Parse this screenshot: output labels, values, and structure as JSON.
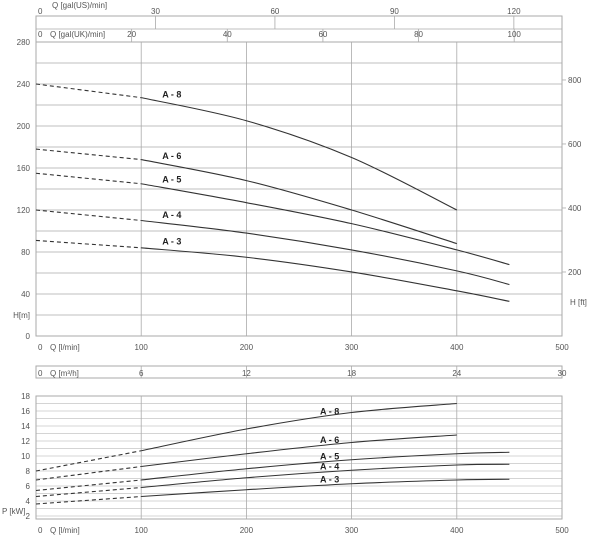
{
  "colors": {
    "grid": "#aaaaaa",
    "curve": "#333333",
    "axis_text": "#555555",
    "background": "#ffffff"
  },
  "chart_data": [
    {
      "type": "line",
      "title": "",
      "axes": {
        "top_us": {
          "label": "Q [gal(US)/min]",
          "ticks": [
            "0",
            "30",
            "60",
            "90",
            "120"
          ],
          "range": [
            0,
            132.09
          ]
        },
        "top_uk": {
          "label": "Q [gal(UK)/min]",
          "ticks": [
            "0",
            "20",
            "40",
            "60",
            "80",
            "100"
          ],
          "range": [
            0,
            110
          ]
        },
        "x": {
          "label": "Q [l/min]",
          "ticks": [
            "0",
            "100",
            "200",
            "300",
            "400",
            "500"
          ],
          "range": [
            0,
            500
          ]
        },
        "x2": {
          "label": "Q [m³/h]",
          "ticks": [
            "0",
            "6",
            "12",
            "18",
            "24",
            "30"
          ],
          "range": [
            0,
            30
          ]
        },
        "y": {
          "label": "H[m]",
          "ticks": [
            "0",
            "40",
            "80",
            "120",
            "160",
            "200",
            "240",
            "280"
          ],
          "range": [
            0,
            280
          ]
        },
        "y2": {
          "label": "H [ft]",
          "ticks": [
            "200",
            "400",
            "600",
            "800"
          ],
          "range": [
            0,
            918.6
          ]
        }
      },
      "grid": true,
      "dashed_segment_until_x": 100,
      "series": [
        {
          "name": "A - 8",
          "x": [
            0,
            100,
            200,
            300,
            400
          ],
          "y": [
            240,
            227,
            205,
            170,
            120
          ]
        },
        {
          "name": "A - 6",
          "x": [
            0,
            100,
            200,
            300,
            400
          ],
          "y": [
            178,
            168,
            148,
            120,
            88
          ]
        },
        {
          "name": "A - 5",
          "x": [
            0,
            100,
            200,
            300,
            400,
            450
          ],
          "y": [
            155,
            145,
            127,
            107,
            82,
            68
          ]
        },
        {
          "name": "A - 4",
          "x": [
            0,
            100,
            200,
            300,
            400,
            450
          ],
          "y": [
            120,
            110,
            98,
            82,
            62,
            49
          ]
        },
        {
          "name": "A - 3",
          "x": [
            0,
            100,
            200,
            300,
            400,
            450
          ],
          "y": [
            91,
            84,
            75,
            61,
            43,
            33
          ]
        }
      ]
    },
    {
      "type": "line",
      "title": "",
      "axes": {
        "x": {
          "label": "Q [l/min]",
          "ticks": [
            "0",
            "100",
            "200",
            "300",
            "400",
            "500"
          ],
          "range": [
            0,
            500
          ]
        },
        "y": {
          "label": "P [kW]",
          "ticks": [
            "2",
            "4",
            "6",
            "8",
            "10",
            "12",
            "14",
            "16",
            "18"
          ],
          "range": [
            1.6,
            18
          ]
        }
      },
      "grid": true,
      "dashed_segment_until_x": 100,
      "series": [
        {
          "name": "A - 8",
          "x": [
            0,
            100,
            200,
            300,
            400
          ],
          "y": [
            8.0,
            10.7,
            13.6,
            15.8,
            17.0
          ]
        },
        {
          "name": "A - 6",
          "x": [
            0,
            100,
            200,
            300,
            400
          ],
          "y": [
            6.8,
            8.6,
            10.3,
            11.8,
            12.8
          ]
        },
        {
          "name": "A - 5",
          "x": [
            0,
            100,
            200,
            300,
            400,
            450
          ],
          "y": [
            5.4,
            6.8,
            8.3,
            9.5,
            10.3,
            10.5
          ]
        },
        {
          "name": "A - 4",
          "x": [
            0,
            100,
            200,
            300,
            400,
            450
          ],
          "y": [
            4.6,
            5.8,
            7.1,
            8.1,
            8.8,
            8.9
          ]
        },
        {
          "name": "A - 3",
          "x": [
            0,
            100,
            200,
            300,
            400,
            450
          ],
          "y": [
            3.6,
            4.6,
            5.5,
            6.3,
            6.8,
            6.9
          ]
        }
      ]
    }
  ]
}
